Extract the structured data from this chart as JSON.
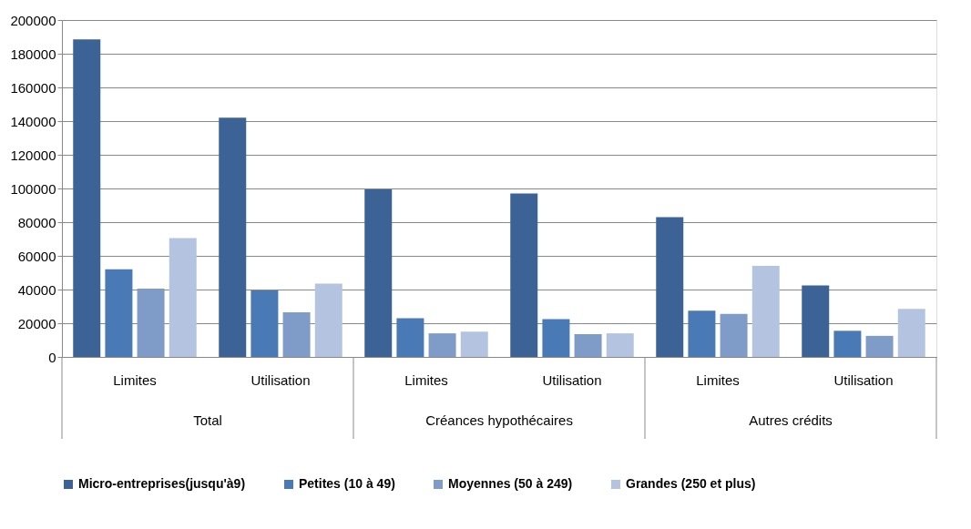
{
  "chart_data": {
    "type": "bar",
    "categories": [
      "Limites",
      "Utilisation",
      "Limites",
      "Utilisation",
      "Limites",
      "Utilisation"
    ],
    "series": [
      {
        "name": "Micro-entreprises(jusqu'à9)",
        "color": "#3d6396",
        "values": [
          188500,
          142000,
          99500,
          97000,
          83000,
          42500
        ]
      },
      {
        "name": "Petites (10 à 49)",
        "color": "#4a7ab5",
        "values": [
          52000,
          39500,
          23000,
          22500,
          27500,
          15500
        ]
      },
      {
        "name": "Moyennes (50 à 249)",
        "color": "#7f9cc8",
        "values": [
          40500,
          26500,
          14000,
          13500,
          25500,
          12500
        ]
      },
      {
        "name": "Grandes (250 et plus)",
        "color": "#b4c4e0",
        "values": [
          70500,
          43500,
          15000,
          14000,
          54000,
          28500
        ]
      }
    ],
    "annotations": [
      "Total",
      "Créances hypothécaires",
      "Autres crédits"
    ],
    "ylim": [
      0,
      200000
    ],
    "yticks": [
      0,
      20000,
      40000,
      60000,
      80000,
      100000,
      120000,
      140000,
      160000,
      180000,
      200000
    ],
    "grid": "y",
    "legend": "bottom"
  }
}
